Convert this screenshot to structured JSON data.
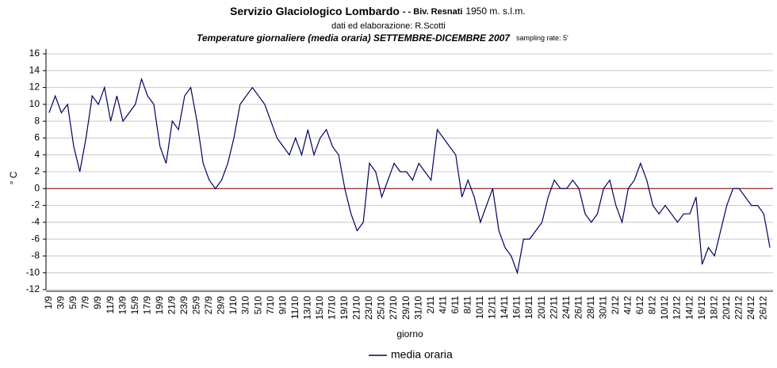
{
  "chart_data": {
    "type": "line",
    "title": "Servizio Glaciologico Lombardo",
    "title_separator": "-  - Biv. Resnati",
    "title_altitude": "1950 m. s.l.m.",
    "subtitle": "dati ed elaborazione: R.Scotti",
    "title2": "Temperature giornaliere (media oraria) SETTEMBRE-DICEMBRE 2007",
    "note": "sampling rate: 5'",
    "y_label": "° C",
    "x_label": "giorno",
    "categories": [
      "1/9",
      null,
      "3/9",
      null,
      "5/9",
      null,
      "7/9",
      null,
      "9/9",
      null,
      "11/9",
      null,
      "13/9",
      null,
      "15/9",
      null,
      "17/9",
      null,
      "19/9",
      null,
      "21/9",
      null,
      "23/9",
      null,
      "25/9",
      null,
      "27/9",
      null,
      "29/9",
      null,
      "1/10",
      null,
      "3/10",
      null,
      "5/10",
      null,
      "7/10",
      null,
      "9/10",
      null,
      "11/10",
      null,
      "13/10",
      null,
      "15/10",
      null,
      "17/10",
      null,
      "19/10",
      null,
      "21/10",
      null,
      "23/10",
      null,
      "25/10",
      null,
      "27/10",
      null,
      "29/10",
      null,
      "31/10",
      null,
      "2/11",
      null,
      "4/11",
      null,
      "6/11",
      null,
      "8/11",
      null,
      "10/11",
      null,
      "12/11",
      null,
      "14/11",
      null,
      "16/11",
      null,
      "18/11",
      null,
      "20/11",
      null,
      "22/11",
      null,
      "24/11",
      null,
      "26/11",
      null,
      "28/11",
      null,
      "30/11",
      null,
      "2/12",
      null,
      "4/12",
      null,
      "6/12",
      null,
      "8/12",
      null,
      "10/12",
      null,
      "12/12",
      null,
      "14/12",
      null,
      "16/12",
      null,
      "18/12",
      null,
      "20/12",
      null,
      "22/12",
      null,
      "24/12",
      null,
      "26/12",
      null
    ],
    "series": [
      {
        "name": "media oraria",
        "color": "#000060",
        "values": [
          9,
          11,
          9,
          10,
          5,
          2,
          6,
          11,
          10,
          12,
          8,
          11,
          8,
          9,
          10,
          13,
          11,
          10,
          5,
          3,
          8,
          7,
          11,
          12,
          8,
          3,
          1,
          0,
          1,
          3,
          6,
          10,
          11,
          12,
          11,
          10,
          8,
          6,
          5,
          4,
          6,
          4,
          7,
          4,
          6,
          7,
          5,
          4,
          0,
          -3,
          -5,
          -4,
          3,
          2,
          -1,
          1,
          3,
          2,
          2,
          1,
          3,
          2,
          1,
          7,
          6,
          5,
          4,
          -1,
          1,
          -1,
          -4,
          -2,
          0,
          -5,
          -7,
          -8,
          -10,
          -6,
          -6,
          -5,
          -4,
          -1,
          1,
          0,
          0,
          1,
          0,
          -3,
          -4,
          -3,
          0,
          1,
          -2,
          -4,
          0,
          1,
          3,
          1,
          -2,
          -3,
          -2,
          -3,
          -4,
          -3,
          -3,
          -1,
          -9,
          -7,
          -8,
          -5,
          -2,
          0,
          0,
          -1,
          -2,
          -2,
          -3,
          -7
        ]
      }
    ],
    "ylim": [
      -12,
      16
    ],
    "yticks": [
      -12,
      -10,
      -8,
      -6,
      -4,
      -2,
      0,
      2,
      4,
      6,
      8,
      10,
      12,
      14,
      16
    ],
    "grid": true,
    "zero_line_color": "#800000"
  }
}
